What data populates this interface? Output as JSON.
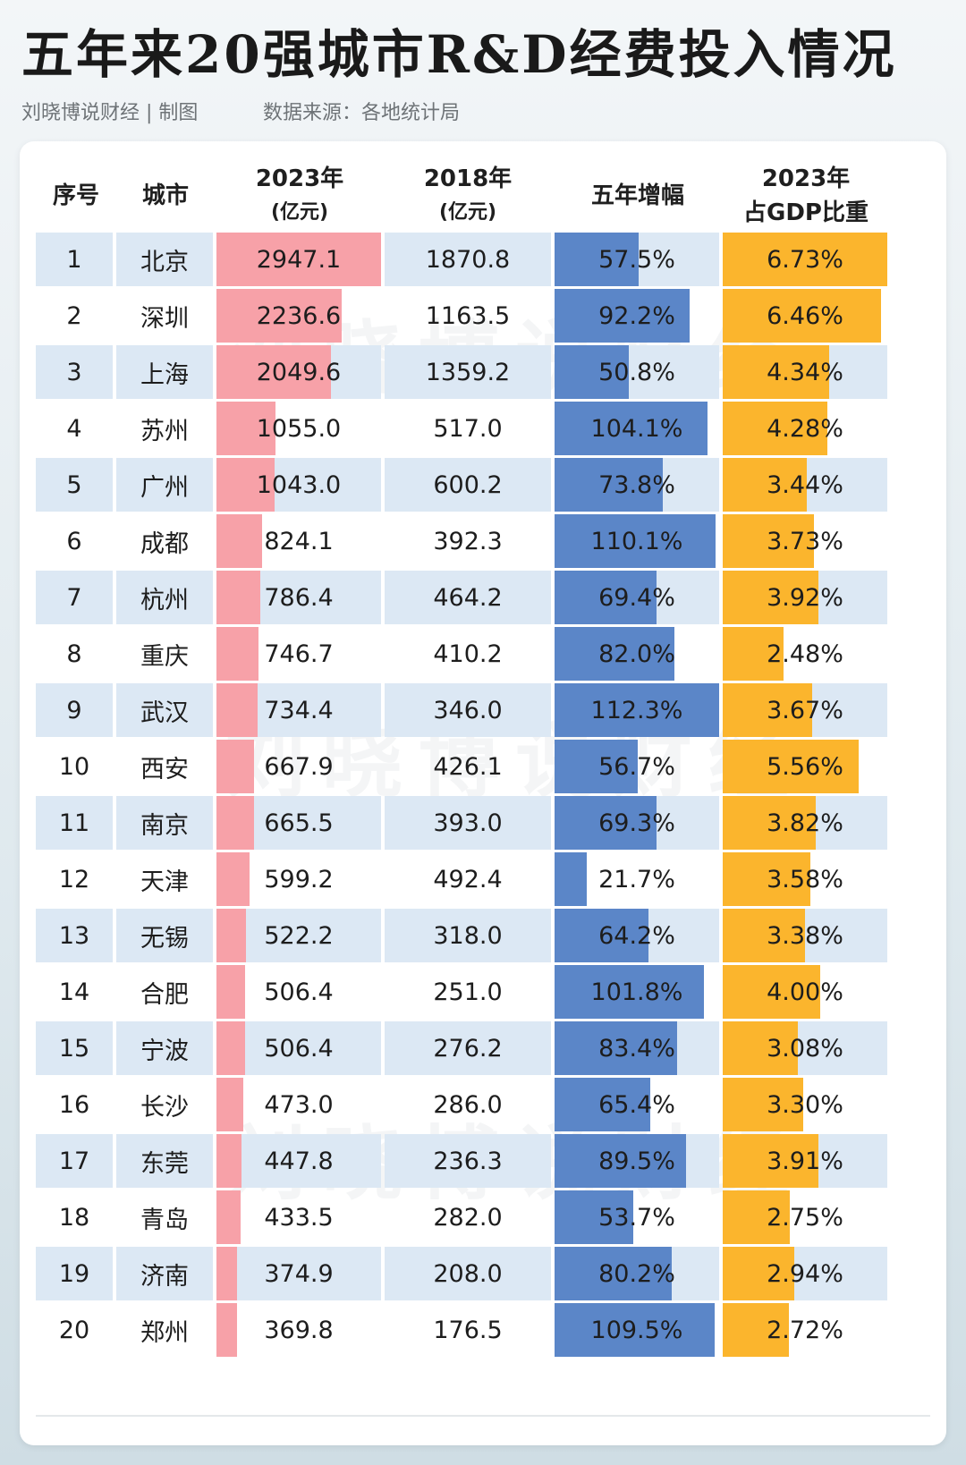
{
  "header": {
    "title": "五年来20强城市R&D经费投入情况",
    "credit": "刘晓博说财经 | 制图",
    "source": "数据来源：各地统计局",
    "watermark": "刘晓博说财经"
  },
  "colors": {
    "row_band": "#dce8f4",
    "bar_2023": "#f7a1a8",
    "bar_growth": "#5b86c8",
    "bar_ratio": "#fbb52d"
  },
  "chart_data": {
    "type": "table",
    "title": "五年来20强城市R&D经费投入情况",
    "columns": [
      {
        "key": "rank",
        "label": "序号",
        "sub": ""
      },
      {
        "key": "city",
        "label": "城市",
        "sub": ""
      },
      {
        "key": "rd2023",
        "label": "2023年",
        "sub": "(亿元)"
      },
      {
        "key": "rd2018",
        "label": "2018年",
        "sub": "(亿元)"
      },
      {
        "key": "growth",
        "label": "五年增幅",
        "sub": ""
      },
      {
        "key": "ratio",
        "label": "2023年",
        "sub": "占GDP比重"
      }
    ],
    "bar_max": {
      "rd2023": 2947.1,
      "growth": 112.3,
      "ratio": 6.73
    },
    "rows": [
      {
        "rank": "1",
        "city": "北京",
        "rd2023": "2947.1",
        "rd2018": "1870.8",
        "growth": "57.5%",
        "ratio": "6.73%"
      },
      {
        "rank": "2",
        "city": "深圳",
        "rd2023": "2236.6",
        "rd2018": "1163.5",
        "growth": "92.2%",
        "ratio": "6.46%"
      },
      {
        "rank": "3",
        "city": "上海",
        "rd2023": "2049.6",
        "rd2018": "1359.2",
        "growth": "50.8%",
        "ratio": "4.34%"
      },
      {
        "rank": "4",
        "city": "苏州",
        "rd2023": "1055.0",
        "rd2018": "517.0",
        "growth": "104.1%",
        "ratio": "4.28%"
      },
      {
        "rank": "5",
        "city": "广州",
        "rd2023": "1043.0",
        "rd2018": "600.2",
        "growth": "73.8%",
        "ratio": "3.44%"
      },
      {
        "rank": "6",
        "city": "成都",
        "rd2023": "824.1",
        "rd2018": "392.3",
        "growth": "110.1%",
        "ratio": "3.73%"
      },
      {
        "rank": "7",
        "city": "杭州",
        "rd2023": "786.4",
        "rd2018": "464.2",
        "growth": "69.4%",
        "ratio": "3.92%"
      },
      {
        "rank": "8",
        "city": "重庆",
        "rd2023": "746.7",
        "rd2018": "410.2",
        "growth": "82.0%",
        "ratio": "2.48%"
      },
      {
        "rank": "9",
        "city": "武汉",
        "rd2023": "734.4",
        "rd2018": "346.0",
        "growth": "112.3%",
        "ratio": "3.67%"
      },
      {
        "rank": "10",
        "city": "西安",
        "rd2023": "667.9",
        "rd2018": "426.1",
        "growth": "56.7%",
        "ratio": "5.56%"
      },
      {
        "rank": "11",
        "city": "南京",
        "rd2023": "665.5",
        "rd2018": "393.0",
        "growth": "69.3%",
        "ratio": "3.82%"
      },
      {
        "rank": "12",
        "city": "天津",
        "rd2023": "599.2",
        "rd2018": "492.4",
        "growth": "21.7%",
        "ratio": "3.58%"
      },
      {
        "rank": "13",
        "city": "无锡",
        "rd2023": "522.2",
        "rd2018": "318.0",
        "growth": "64.2%",
        "ratio": "3.38%"
      },
      {
        "rank": "14",
        "city": "合肥",
        "rd2023": "506.4",
        "rd2018": "251.0",
        "growth": "101.8%",
        "ratio": "4.00%"
      },
      {
        "rank": "15",
        "city": "宁波",
        "rd2023": "506.4",
        "rd2018": "276.2",
        "growth": "83.4%",
        "ratio": "3.08%"
      },
      {
        "rank": "16",
        "city": "长沙",
        "rd2023": "473.0",
        "rd2018": "286.0",
        "growth": "65.4%",
        "ratio": "3.30%"
      },
      {
        "rank": "17",
        "city": "东莞",
        "rd2023": "447.8",
        "rd2018": "236.3",
        "growth": "89.5%",
        "ratio": "3.91%"
      },
      {
        "rank": "18",
        "city": "青岛",
        "rd2023": "433.5",
        "rd2018": "282.0",
        "growth": "53.7%",
        "ratio": "2.75%"
      },
      {
        "rank": "19",
        "city": "济南",
        "rd2023": "374.9",
        "rd2018": "208.0",
        "growth": "80.2%",
        "ratio": "2.94%"
      },
      {
        "rank": "20",
        "city": "郑州",
        "rd2023": "369.8",
        "rd2018": "176.5",
        "growth": "109.5%",
        "ratio": "2.72%"
      }
    ]
  }
}
